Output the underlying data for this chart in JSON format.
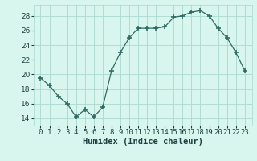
{
  "x": [
    0,
    1,
    2,
    3,
    4,
    5,
    6,
    7,
    8,
    9,
    10,
    11,
    12,
    13,
    14,
    15,
    16,
    17,
    18,
    19,
    20,
    21,
    22,
    23
  ],
  "y": [
    19.5,
    18.5,
    17.0,
    16.0,
    14.2,
    15.2,
    14.2,
    15.5,
    20.5,
    23.0,
    25.0,
    26.3,
    26.3,
    26.3,
    26.5,
    27.8,
    28.0,
    28.5,
    28.7,
    28.0,
    26.3,
    25.0,
    23.0,
    20.5
  ],
  "xlabel": "Humidex (Indice chaleur)",
  "ylim": [
    13,
    29.5
  ],
  "yticks": [
    14,
    16,
    18,
    20,
    22,
    24,
    26,
    28
  ],
  "xticks": [
    0,
    1,
    2,
    3,
    4,
    5,
    6,
    7,
    8,
    9,
    10,
    11,
    12,
    13,
    14,
    15,
    16,
    17,
    18,
    19,
    20,
    21,
    22,
    23
  ],
  "line_color": "#2d6b63",
  "marker": "+",
  "marker_size": 4,
  "bg_color": "#d8f5ee",
  "grid_color": "#aad8d0",
  "font_color": "#1a4040",
  "xlabel_fontsize": 7.5,
  "tick_fontsize": 6.5
}
